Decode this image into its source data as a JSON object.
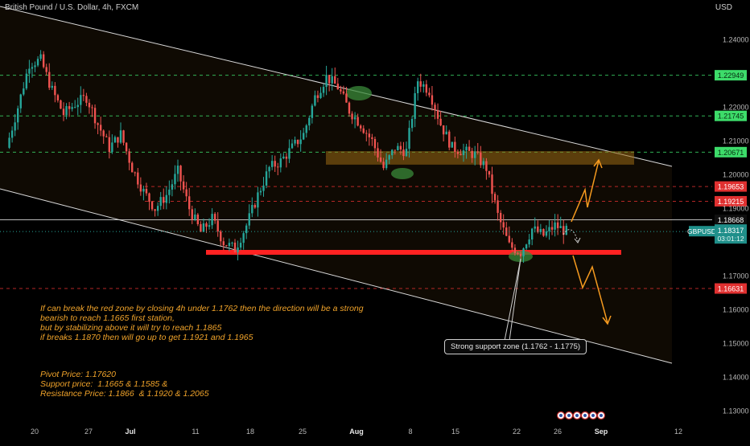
{
  "header": {
    "symbol_title": "British Pound / U.S. Dollar, 4h, FXCM",
    "currency": "USD"
  },
  "chart_data": {
    "type": "candlestick",
    "y_axis": {
      "ticks": [
        "1.24000",
        "1.22000",
        "1.21000",
        "1.20000",
        "1.19000",
        "1.17000",
        "1.16000",
        "1.15000",
        "1.14000",
        "1.13000"
      ],
      "range": [
        1.1275,
        1.2475
      ]
    },
    "x_axis": {
      "ticks": [
        "20",
        "27",
        "Jul",
        "11",
        "18",
        "25",
        "Aug",
        "8",
        "15",
        "22",
        "26",
        "Sep",
        "12"
      ]
    },
    "series": [
      {
        "name": "GBPUSD",
        "close_path": [
          [
            0,
            1.208
          ],
          [
            4,
            1.22
          ],
          [
            8,
            1.233
          ],
          [
            12,
            1.234
          ],
          [
            16,
            1.225
          ],
          [
            20,
            1.218
          ],
          [
            24,
            1.221
          ],
          [
            28,
            1.223
          ],
          [
            32,
            1.215
          ],
          [
            36,
            1.208
          ],
          [
            40,
            1.212
          ],
          [
            44,
            1.202
          ],
          [
            48,
            1.195
          ],
          [
            52,
            1.19
          ],
          [
            56,
            1.194
          ],
          [
            60,
            1.201
          ],
          [
            64,
            1.19
          ],
          [
            68,
            1.183
          ],
          [
            72,
            1.187
          ],
          [
            76,
            1.18
          ],
          [
            80,
            1.178
          ],
          [
            84,
            1.185
          ],
          [
            88,
            1.194
          ],
          [
            92,
            1.202
          ],
          [
            96,
            1.204
          ],
          [
            100,
            1.208
          ],
          [
            104,
            1.212
          ],
          [
            108,
            1.223
          ],
          [
            112,
            1.229
          ],
          [
            116,
            1.226
          ],
          [
            120,
            1.219
          ],
          [
            124,
            1.215
          ],
          [
            128,
            1.21
          ],
          [
            132,
            1.202
          ],
          [
            136,
            1.208
          ],
          [
            140,
            1.207
          ],
          [
            144,
            1.228
          ],
          [
            148,
            1.225
          ],
          [
            152,
            1.215
          ],
          [
            156,
            1.208
          ],
          [
            160,
            1.207
          ],
          [
            164,
            1.206
          ],
          [
            168,
            1.202
          ],
          [
            172,
            1.188
          ],
          [
            176,
            1.179
          ],
          [
            180,
            1.177
          ],
          [
            184,
            1.184
          ],
          [
            188,
            1.182
          ],
          [
            192,
            1.185
          ],
          [
            196,
            1.1832
          ]
        ]
      }
    ],
    "last_price": "1.18317",
    "countdown": "03:01:12",
    "symbol_badge": "GBPUSD",
    "price_levels": [
      {
        "label": "1.22949",
        "value": 1.22949,
        "color": "#3ddc6a",
        "style": "dashed"
      },
      {
        "label": "1.21745",
        "value": 1.21745,
        "color": "#3ddc6a",
        "style": "dashed"
      },
      {
        "label": "1.20671",
        "value": 1.20671,
        "color": "#3ddc6a",
        "style": "dashed"
      },
      {
        "label": "1.19653",
        "value": 1.19653,
        "color": "#e03030",
        "style": "dashed"
      },
      {
        "label": "1.19215",
        "value": 1.19215,
        "color": "#e03030",
        "style": "dashed"
      },
      {
        "label": "1.18668",
        "value": 1.18668,
        "color": "#e8e8e8",
        "style": "solid"
      },
      {
        "label": "1.16631",
        "value": 1.16631,
        "color": "#e03030",
        "style": "dashed"
      }
    ],
    "zones": {
      "resistance_zone": [
        1.203,
        1.207
      ],
      "support_zone": [
        1.1762,
        1.1775
      ]
    },
    "annotation_callout": "Strong support zone (1.1762 - 1.1775)",
    "analysis_lines": [
      "If can break the red zone by closing 4h under 1.1762 then the direction will be a strong",
      "bearish to reach 1.1665 first station,",
      "but by stabilizing above it will try to reach 1.1865",
      "if breaks 1.1870 then will go up to get 1.1921 and 1.1965"
    ],
    "key_levels": [
      "Pivot Price: 1.17620",
      "Support price:  1.1665 & 1.1585 &",
      "Resistance Price: 1.1866  & 1.1920 & 1.2065"
    ],
    "colors": {
      "bull": "#26a69a",
      "bear": "#ef5350",
      "arrow": "#f59a1f",
      "support_bar": "#ff2222",
      "channel": "#d9d9d9"
    }
  }
}
